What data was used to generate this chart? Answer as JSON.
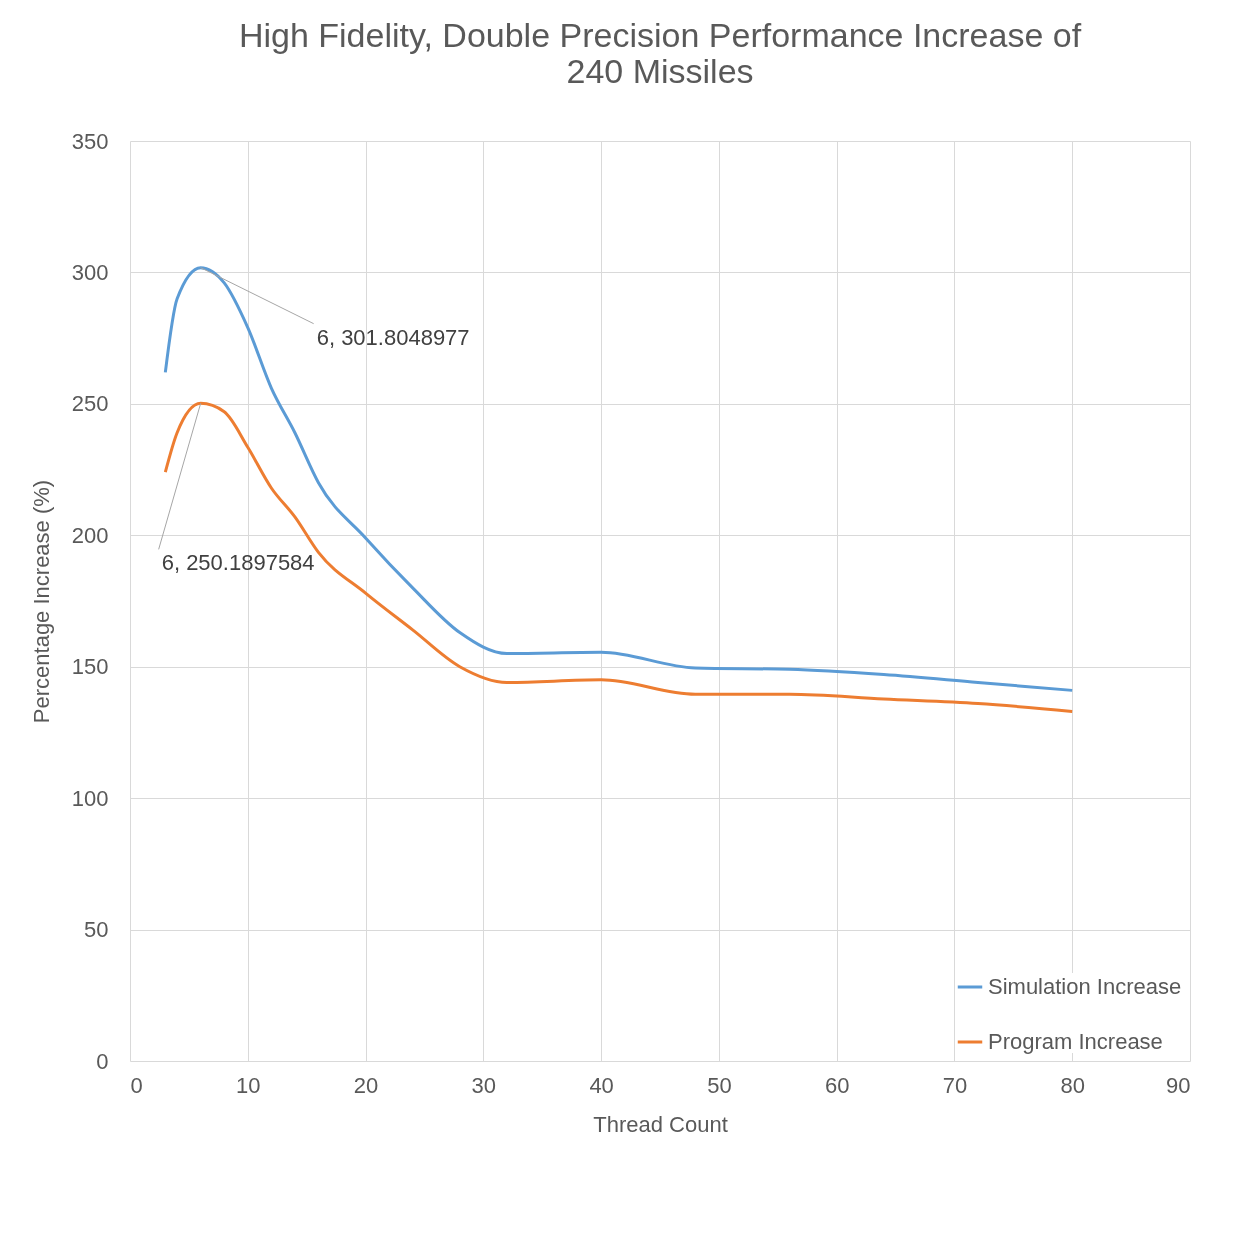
{
  "chart_data": {
    "type": "line",
    "title": "High Fidelity, Double Precision Performance Increase of 240 Missiles",
    "xlabel": "Thread Count",
    "ylabel": "Percentage Increase (%)",
    "x": [
      3,
      4,
      6,
      8,
      10,
      12,
      14,
      16,
      20,
      24,
      28,
      32,
      40,
      48,
      56,
      64,
      72,
      80
    ],
    "series": [
      {
        "name": "Simulation Increase",
        "color": "#5b9bd5",
        "values": [
          262,
          290,
          301.8048977,
          296,
          279,
          256,
          239,
          220,
          199,
          180,
          163,
          155,
          155.5,
          149.5,
          149,
          147,
          144,
          141
        ]
      },
      {
        "name": "Program Increase",
        "color": "#ed7d31",
        "values": [
          224,
          239,
          250.1897584,
          247,
          233.5,
          218,
          207,
          193.5,
          178,
          164,
          150,
          144,
          145,
          139.5,
          139.5,
          137.7,
          136,
          133
        ]
      }
    ],
    "xlim": [
      0,
      90
    ],
    "xticks": [
      0,
      10,
      20,
      30,
      40,
      50,
      60,
      70,
      80,
      90
    ],
    "ylim": [
      0,
      350
    ],
    "yticks": [
      0,
      50,
      100,
      150,
      200,
      250,
      300,
      350
    ],
    "grid": true,
    "legend": "bottom right",
    "marker": "none",
    "line_style": "solid",
    "annotations": [
      {
        "text": "6, 301.8048977",
        "x": 6,
        "y": 301.8048977
      },
      {
        "text": "6, 250.1897584",
        "x": 6,
        "y": 250.1897584
      }
    ]
  }
}
